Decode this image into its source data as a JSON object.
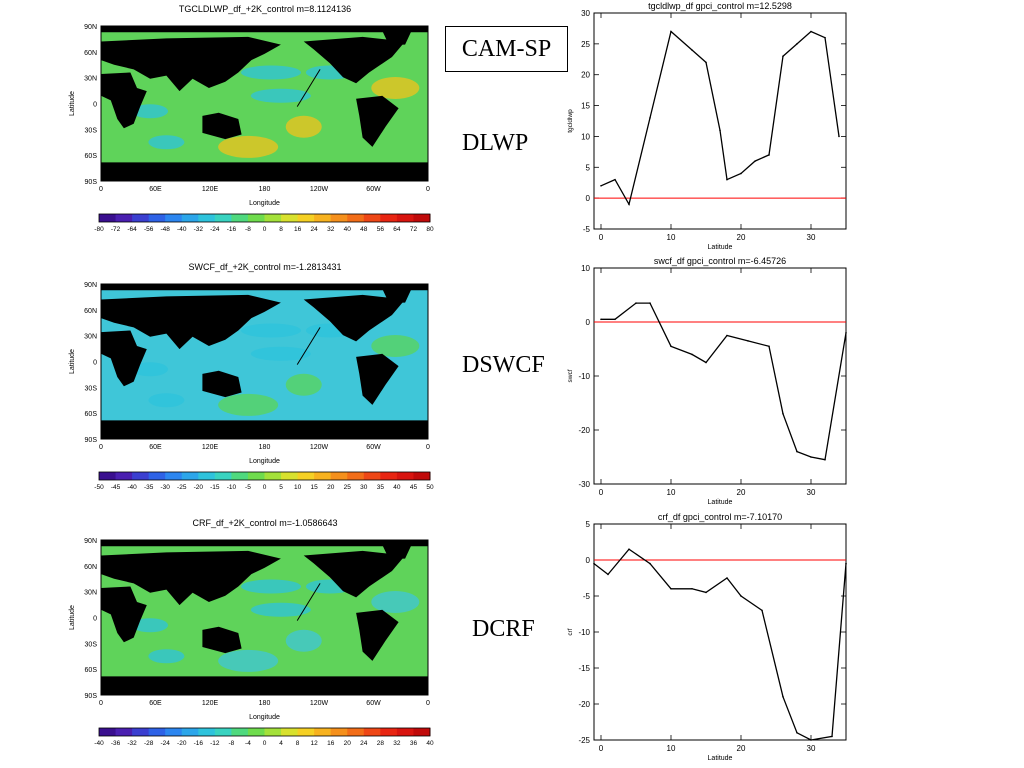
{
  "labels": {
    "model": "CAM-SP",
    "row1": "DLWP",
    "row2": "DSWCF",
    "row3": "DCRF"
  },
  "maps": [
    {
      "title": "TGCLDLWP_df_+2K_control  m=8.1124136",
      "xlabel": "Longitude",
      "ylabel": "Latitude",
      "lon_ticks": [
        "0",
        "60E",
        "120E",
        "180",
        "120W",
        "60W",
        "0"
      ],
      "lat_ticks": [
        "90N",
        "60N",
        "30N",
        "0",
        "30S",
        "60S",
        "90S"
      ],
      "colorbar_ticks": [
        "-80",
        "-72",
        "-64",
        "-56",
        "-48",
        "-40",
        "-32",
        "-24",
        "-16",
        "-8",
        "0",
        "8",
        "16",
        "24",
        "32",
        "40",
        "48",
        "56",
        "64",
        "72",
        "80"
      ],
      "colors": {
        "ocean": "#5fd35a",
        "accent": "#f0c31c"
      }
    },
    {
      "title": "SWCF_df_+2K_control  m=-1.2813431",
      "xlabel": "Longitude",
      "ylabel": "Latitude",
      "lon_ticks": [
        "0",
        "60E",
        "120E",
        "180",
        "120W",
        "60W",
        "0"
      ],
      "lat_ticks": [
        "90N",
        "60N",
        "30N",
        "0",
        "30S",
        "60S",
        "90S"
      ],
      "colorbar_ticks": [
        "-50",
        "-45",
        "-40",
        "-35",
        "-30",
        "-25",
        "-20",
        "-15",
        "-10",
        "-5",
        "0",
        "5",
        "10",
        "15",
        "20",
        "25",
        "30",
        "35",
        "40",
        "45",
        "50"
      ],
      "colors": {
        "ocean": "#3fc6d8",
        "accent": "#5bd45a"
      }
    },
    {
      "title": "CRF_df_+2K_control  m=-1.0586643",
      "xlabel": "Longitude",
      "ylabel": "Latitude",
      "lon_ticks": [
        "0",
        "60E",
        "120E",
        "180",
        "120W",
        "60W",
        "0"
      ],
      "lat_ticks": [
        "90N",
        "60N",
        "30N",
        "0",
        "30S",
        "60S",
        "90S"
      ],
      "colorbar_ticks": [
        "-40",
        "-36",
        "-32",
        "-28",
        "-24",
        "-20",
        "-16",
        "-12",
        "-8",
        "-4",
        "0",
        "4",
        "8",
        "12",
        "16",
        "20",
        "24",
        "28",
        "32",
        "36",
        "40"
      ],
      "colors": {
        "ocean": "#5fd35a",
        "accent": "#3fc6d8"
      }
    }
  ],
  "chart_data": [
    {
      "type": "line",
      "title": "tgcldlwp_df  gpci_control  m=12.5298",
      "xlabel": "Latitude",
      "ylabel": "tgcldlwp",
      "x": [
        0,
        2,
        4,
        7,
        10,
        13,
        15,
        17,
        18,
        20,
        22,
        24,
        26,
        28,
        30,
        32,
        34
      ],
      "y": [
        2,
        3,
        -1,
        13,
        27,
        24,
        22,
        11,
        3,
        4,
        6,
        7,
        23,
        25,
        27,
        26,
        10
      ],
      "xlim": [
        -1,
        35
      ],
      "ylim": [
        -5,
        30
      ],
      "xticks": [
        0,
        10,
        20,
        30
      ],
      "yticks": [
        -5,
        0,
        5,
        10,
        15,
        20,
        25,
        30
      ],
      "zero_line": true,
      "colors": {
        "line": "#000000",
        "zero": "#ff0000"
      }
    },
    {
      "type": "line",
      "title": "swcf_df  gpci_control  m=-6.45726",
      "xlabel": "Latitude",
      "ylabel": "swcf",
      "x": [
        0,
        2,
        5,
        7,
        10,
        13,
        15,
        18,
        21,
        24,
        26,
        28,
        30,
        32,
        35
      ],
      "y": [
        0.5,
        0.5,
        3.5,
        3.5,
        -4.5,
        -6,
        -7.5,
        -2.5,
        -3.5,
        -4.5,
        -17,
        -24,
        -25,
        -25.5,
        -2
      ],
      "xlim": [
        -1,
        35
      ],
      "ylim": [
        -30,
        10
      ],
      "xticks": [
        0,
        10,
        20,
        30
      ],
      "yticks": [
        -30,
        -20,
        -10,
        0,
        10
      ],
      "zero_line": true,
      "colors": {
        "line": "#000000",
        "zero": "#ff0000"
      }
    },
    {
      "type": "line",
      "title": "crf_df  gpci_control  m=-7.10170",
      "xlabel": "Latitude",
      "ylabel": "crf",
      "x": [
        -1,
        1,
        4,
        7,
        10,
        13,
        15,
        18,
        20,
        23,
        26,
        28,
        30,
        33,
        35
      ],
      "y": [
        -0.5,
        -2,
        1.5,
        -0.5,
        -4,
        -4,
        -4.5,
        -2.5,
        -5,
        -7,
        -19,
        -24,
        -25,
        -24.5,
        -0.5
      ],
      "xlim": [
        -1,
        35
      ],
      "ylim": [
        -25,
        5
      ],
      "xticks": [
        0,
        10,
        20,
        30
      ],
      "yticks": [
        -25,
        -20,
        -15,
        -10,
        -5,
        0,
        5
      ],
      "zero_line": true,
      "colors": {
        "line": "#000000",
        "zero": "#ff0000"
      }
    }
  ]
}
